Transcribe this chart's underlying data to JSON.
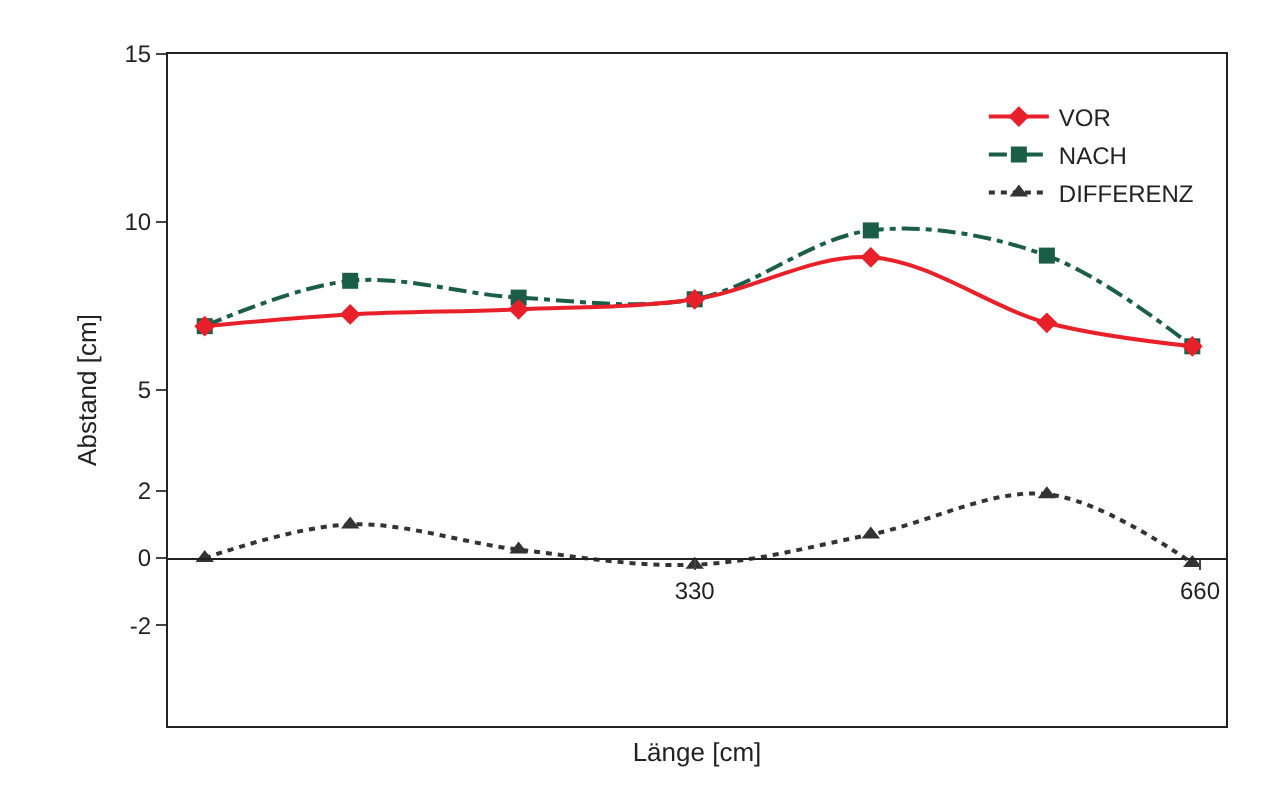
{
  "chart_data": {
    "type": "line",
    "xlabel": "Länge [cm]",
    "ylabel": "Abstand [cm]",
    "xlim": [
      -14,
      677
    ],
    "xticks": [
      330,
      660
    ],
    "ylim": [
      -5,
      15
    ],
    "yticks": [
      15,
      10,
      5,
      2,
      0,
      -2
    ],
    "grid": false,
    "legend": "top right",
    "series": [
      {
        "name": "VOR",
        "color": "#e8202a",
        "marker": "diamond",
        "line_style": "solid",
        "x": [
          10,
          105,
          215,
          330,
          445,
          560,
          655
        ],
        "values": [
          6.9,
          7.25,
          7.4,
          7.7,
          8.95,
          7.0,
          6.3
        ]
      },
      {
        "name": "NACH",
        "color": "#1a5e48",
        "marker": "square",
        "line_style": "dashdot",
        "x": [
          10,
          105,
          215,
          330,
          445,
          560,
          655
        ],
        "values": [
          6.9,
          8.25,
          7.75,
          7.7,
          9.75,
          9.0,
          6.3
        ]
      },
      {
        "name": "DIFFERENZ",
        "color": "#333333",
        "marker": "triangle",
        "line_style": "dotted",
        "x": [
          10,
          105,
          215,
          330,
          445,
          560,
          655
        ],
        "values": [
          0,
          1.0,
          0.25,
          -0.2,
          0.7,
          1.9,
          -0.15
        ]
      }
    ]
  }
}
